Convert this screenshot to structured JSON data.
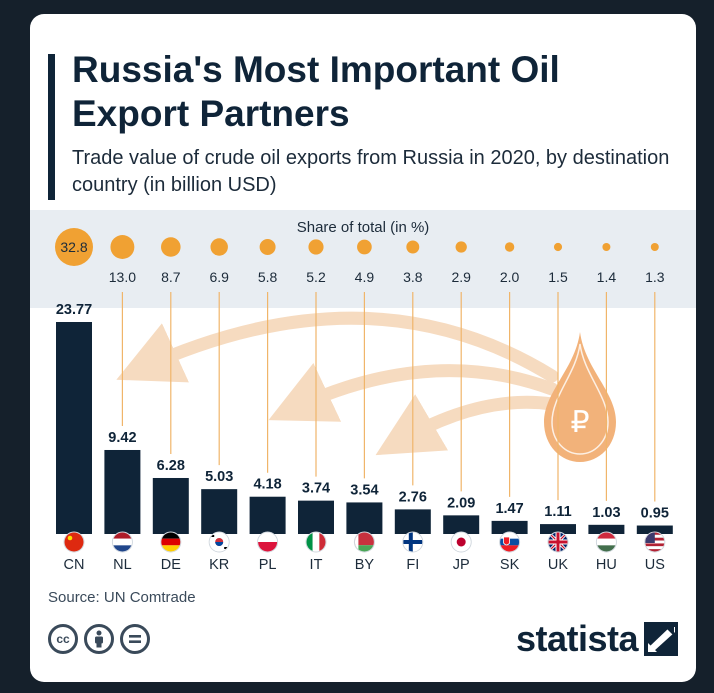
{
  "title": "Russia's Most Important Oil Export Partners",
  "subtitle": "Trade value of crude oil exports from Russia in 2020, by destination country (in billion USD)",
  "share_label": "Share of total (in %)",
  "source": "Source: UN Comtrade",
  "logo": "statista",
  "license_icons": [
    "cc-icon",
    "attribution-icon",
    "no-derivatives-icon"
  ],
  "currency_symbol": "₽",
  "colors": {
    "bar": "#0f2438",
    "share_bubble": "#f0a133",
    "arrow": "#f6dbc0",
    "drop": "#f2b27a"
  },
  "chart_data": {
    "type": "bar",
    "categories": [
      "CN",
      "NL",
      "DE",
      "KR",
      "PL",
      "IT",
      "BY",
      "FI",
      "JP",
      "SK",
      "UK",
      "HU",
      "US"
    ],
    "values": [
      23.77,
      9.42,
      6.28,
      5.03,
      4.18,
      3.74,
      3.54,
      2.76,
      2.09,
      1.47,
      1.11,
      1.03,
      0.95
    ],
    "value_labels": [
      "23.77",
      "9.42",
      "6.28",
      "5.03",
      "4.18",
      "3.74",
      "3.54",
      "2.76",
      "2.09",
      "1.47",
      "1.11",
      "1.03",
      "0.95"
    ],
    "share_percent": [
      32.8,
      13.0,
      8.7,
      6.9,
      5.8,
      5.2,
      4.9,
      3.8,
      2.9,
      2.0,
      1.5,
      1.4,
      1.3
    ],
    "share_labels": [
      "32.8",
      "13.0",
      "8.7",
      "6.9",
      "5.8",
      "5.2",
      "4.9",
      "3.8",
      "2.9",
      "2.0",
      "1.5",
      "1.4",
      "1.3"
    ],
    "flag_icons": [
      "flag-cn-icon",
      "flag-nl-icon",
      "flag-de-icon",
      "flag-kr-icon",
      "flag-pl-icon",
      "flag-it-icon",
      "flag-by-icon",
      "flag-fi-icon",
      "flag-jp-icon",
      "flag-sk-icon",
      "flag-uk-icon",
      "flag-hu-icon",
      "flag-us-icon"
    ],
    "title": "Russia's Most Important Oil Export Partners",
    "xlabel": "",
    "ylabel": "",
    "ylim": [
      0,
      23.77
    ],
    "grid": false,
    "legend": "none"
  }
}
